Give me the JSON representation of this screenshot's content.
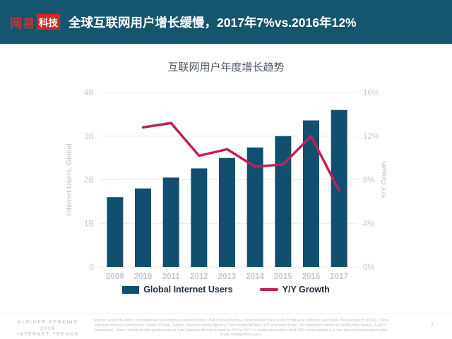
{
  "header": {
    "logo_netease": "网易",
    "logo_tech": "科技",
    "title": "全球互联网用户增长缓慢，2017年7%vs.2016年12%"
  },
  "chart_data": {
    "type": "bar",
    "title": "互联网用户年度增长趋势",
    "categories": [
      "2009",
      "2010",
      "2011",
      "2012",
      "2013",
      "2014",
      "2015",
      "2016",
      "2017"
    ],
    "series": [
      {
        "name": "Global Internet Users",
        "type": "bar",
        "axis": "left",
        "color": "#114f6f",
        "values": [
          1.6,
          1.8,
          2.05,
          2.26,
          2.5,
          2.74,
          3.0,
          3.36,
          3.6
        ]
      },
      {
        "name": "Y/Y Growth",
        "type": "line",
        "axis": "right",
        "color": "#c41e5a",
        "values": [
          null,
          12.8,
          13.2,
          10.2,
          10.8,
          9.2,
          9.4,
          12.0,
          7.0
        ]
      }
    ],
    "y_left": {
      "label": "Internet Users, Global",
      "min": 0,
      "max": 4,
      "ticks": [
        "0",
        "1B",
        "2B",
        "3B",
        "4B"
      ]
    },
    "y_right": {
      "label": "Y/Y Growth",
      "min": 0,
      "max": 16,
      "ticks": [
        "0%",
        "4%",
        "8%",
        "12%",
        "16%"
      ]
    },
    "grid": true,
    "legend_position": "bottom"
  },
  "footer": {
    "brand_line1": "KLEINER PERKINS",
    "brand_line2": "2018",
    "brand_line3": "INTERNET TRENDS",
    "source": "Source: United Nations / International Telecommunications Union, USA Census Bureau. Internet user data is as of mid-year. Internet user data: Pew Research (USA), China Internet Network Information Center (China), Islamic Republic News Agency / InternetWorldStats / KP estimates (Iran). KP estimates based on IAMAI data (India), & APJII (Indonesia). Note: Historical data (particularly in Sub-Saharan Africa) revised by ITU in 2017 to better account for dual-SIM subscriptions (i.e. two Internet subscriptions per single smartphone user).",
    "page": "7"
  },
  "colors": {
    "header_bg": "#15566f",
    "bar": "#114f6f",
    "line": "#c41e5a",
    "logo_badge_red": "#ce2a24"
  }
}
